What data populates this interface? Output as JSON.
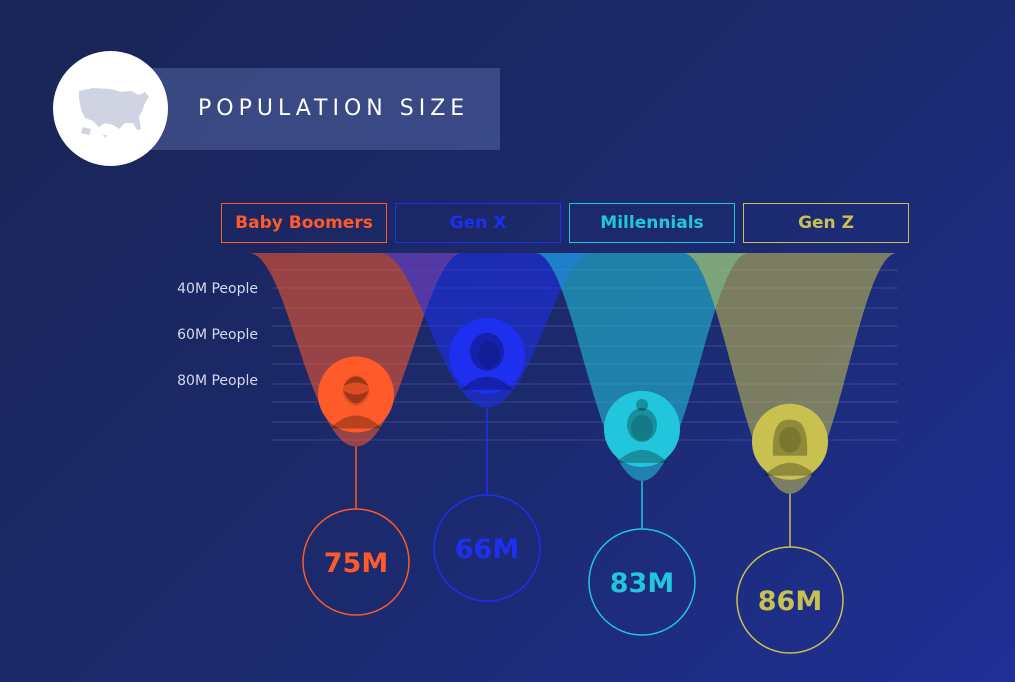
{
  "title": "POPULATION SIZE",
  "icons": {
    "map": "usa-map-icon"
  },
  "chart_data": {
    "type": "area",
    "ylabels": [
      "40M People",
      "60M People",
      "80M People"
    ],
    "series": [
      {
        "name": "Baby Boomers",
        "value": 75,
        "label": "75M",
        "color": "#ff5a2a",
        "avatar": "bearded-man-icon"
      },
      {
        "name": "Gen X",
        "value": 66,
        "label": "66M",
        "color": "#1e2ff0",
        "avatar": "woman-short-hair-icon"
      },
      {
        "name": "Millennials",
        "value": 83,
        "label": "83M",
        "color": "#22c6dc",
        "avatar": "woman-bun-icon"
      },
      {
        "name": "Gen Z",
        "value": 86,
        "label": "86M",
        "color": "#c8c150",
        "avatar": "girl-icon"
      }
    ]
  }
}
